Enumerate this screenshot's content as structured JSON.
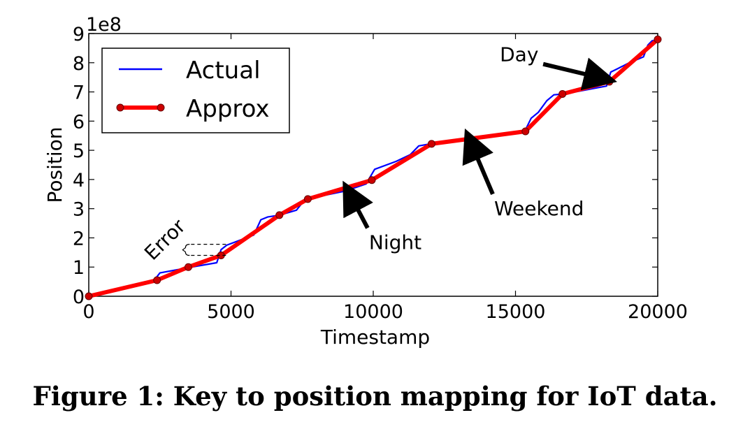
{
  "chart_data": {
    "type": "line",
    "xlabel": "Timestamp",
    "ylabel": "Position",
    "xlim": [
      0,
      20000
    ],
    "ylim": [
      0,
      900000000
    ],
    "y_multiplier_label": "1e8",
    "x_ticks": [
      0,
      5000,
      10000,
      15000,
      20000
    ],
    "x_tick_labels": [
      "0",
      "5000",
      "10000",
      "15000",
      "20000"
    ],
    "y_ticks": [
      0,
      100000000,
      200000000,
      300000000,
      400000000,
      500000000,
      600000000,
      700000000,
      800000000,
      900000000
    ],
    "y_tick_labels": [
      "0",
      "1",
      "2",
      "3",
      "4",
      "5",
      "6",
      "7",
      "8",
      "9"
    ],
    "grid": false,
    "legend_position": "top-left",
    "series": [
      {
        "name": "Actual",
        "color": "#0000ff",
        "x": [
          0,
          2000,
          2300,
          2500,
          3500,
          4500,
          4650,
          4850,
          5800,
          6050,
          6300,
          6700,
          7300,
          7600,
          9000,
          9750,
          10050,
          10800,
          11300,
          11600,
          12000,
          15300,
          15550,
          15800,
          16100,
          16350,
          16700,
          18200,
          18350,
          18600,
          19000,
          19500,
          19650,
          19800,
          20000
        ],
        "y": [
          0,
          45000000,
          55000000,
          80000000,
          98000000,
          115000000,
          160000000,
          175000000,
          210000000,
          262000000,
          272000000,
          278000000,
          295000000,
          332000000,
          360000000,
          385000000,
          435000000,
          462000000,
          485000000,
          515000000,
          522000000,
          560000000,
          610000000,
          630000000,
          670000000,
          690000000,
          693000000,
          720000000,
          768000000,
          780000000,
          800000000,
          820000000,
          860000000,
          875000000,
          880000000
        ]
      },
      {
        "name": "Approx",
        "color": "#ff0000",
        "x": [
          0,
          2400,
          3500,
          4650,
          6700,
          7700,
          9950,
          12050,
          15350,
          16650,
          18300,
          20000
        ],
        "y": [
          0,
          55000000,
          100000000,
          140000000,
          278000000,
          333000000,
          398000000,
          522000000,
          565000000,
          693000000,
          735000000,
          880000000
        ]
      }
    ],
    "annotations": [
      {
        "text": "Day",
        "x": 14450,
        "y": 805000000,
        "arrow_to_x": 18000,
        "arrow_to_y": 748000000
      },
      {
        "text": "Weekend",
        "x": 14250,
        "y": 278000000,
        "arrow_to_x": 13450,
        "arrow_to_y": 522000000
      },
      {
        "text": "Night",
        "x": 9850,
        "y": 162000000,
        "arrow_to_x": 9200,
        "arrow_to_y": 345000000
      },
      {
        "text": "Error",
        "x": 2250,
        "y": 120000000,
        "bracket_x": [
          3300,
          4900
        ],
        "bracket_y": [
          140000000,
          178000000
        ]
      }
    ]
  },
  "caption": "Figure 1: Key to position mapping for IoT data."
}
